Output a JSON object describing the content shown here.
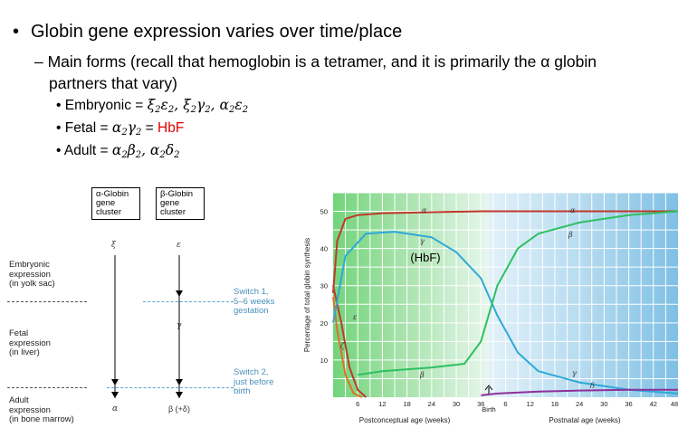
{
  "bullets": {
    "main": "Globin gene expression varies over time/place",
    "sub_line1": "– Main forms (recall that hemoglobin is a tetramer, and it is primarily the α globin",
    "sub_line2": "partners that vary)",
    "embryonic_label": "Embryonic = ",
    "fetal_label": "Fetal = ",
    "fetal_hbf": "HbF",
    "adult_label": "Adult = "
  },
  "diagram": {
    "alpha_cluster": "α-Globin gene cluster",
    "beta_cluster": "β-Globin gene cluster",
    "embryonic_expr": [
      "Embryonic",
      "expression",
      "(in yolk sac)"
    ],
    "fetal_expr": [
      "Fetal",
      "expression",
      "(in liver)"
    ],
    "adult_expr": [
      "Adult",
      "expression",
      "(in bone marrow)"
    ],
    "switch1": [
      "Switch 1,",
      "5–6 weeks",
      "gestation"
    ],
    "switch2": [
      "Switch 2,",
      "just before",
      "birth"
    ],
    "xi": "ξ",
    "epsilon": "ε",
    "gamma": "γ",
    "alpha": "α",
    "beta_delta": "β (+δ)"
  },
  "chart_data": {
    "type": "line",
    "ylabel": "Percentage of total globin synthesis",
    "xlabel_left": "Postconceptual age (weeks)",
    "xlabel_right": "Postnatal age (weeks)",
    "birth_label": "Birth",
    "hbf_label": "(HbF)",
    "ylim": [
      0,
      55
    ],
    "yticks": [
      10,
      20,
      30,
      40,
      50
    ],
    "xticks_prenatal": [
      "6",
      "12",
      "18",
      "24",
      "30",
      "36"
    ],
    "xticks_postnatal": [
      "6",
      "12",
      "18",
      "24",
      "30",
      "36",
      "42",
      "48"
    ],
    "series_labels": {
      "alpha": "α",
      "gamma": "γ",
      "beta": "β",
      "epsilon": "ε",
      "zeta": "ζ",
      "delta": "δ"
    },
    "series": [
      {
        "name": "α",
        "color": "#c0392b",
        "x": [
          0,
          1,
          3,
          6,
          12,
          36,
          60,
          84
        ],
        "y": [
          28,
          42,
          48,
          49,
          49.5,
          50,
          50,
          50
        ]
      },
      {
        "name": "ζ",
        "color": "#c0392b",
        "x": [
          0,
          2,
          4,
          6,
          8
        ],
        "y": [
          30,
          20,
          8,
          2,
          0
        ]
      },
      {
        "name": "ε",
        "color": "#e07020",
        "x": [
          0,
          1,
          3,
          5,
          7
        ],
        "y": [
          27,
          18,
          6,
          1,
          0
        ]
      },
      {
        "name": "γ",
        "color": "#2fa8d8",
        "x": [
          0,
          3,
          8,
          15,
          24,
          30,
          36,
          40,
          45,
          50,
          60,
          72,
          84
        ],
        "y": [
          20,
          38,
          44,
          44.5,
          43,
          39,
          32,
          22,
          12,
          7,
          4,
          2,
          1
        ]
      },
      {
        "name": "β",
        "color": "#2ec060",
        "x": [
          6,
          12,
          24,
          32,
          36,
          40,
          45,
          50,
          60,
          72,
          84
        ],
        "y": [
          6,
          7,
          8,
          9,
          15,
          30,
          40,
          44,
          47,
          49,
          50
        ]
      },
      {
        "name": "δ",
        "color": "#8e2f9a",
        "x": [
          36,
          40,
          50,
          60,
          72,
          84
        ],
        "y": [
          0.5,
          1,
          1.5,
          1.8,
          2,
          2
        ]
      }
    ]
  }
}
